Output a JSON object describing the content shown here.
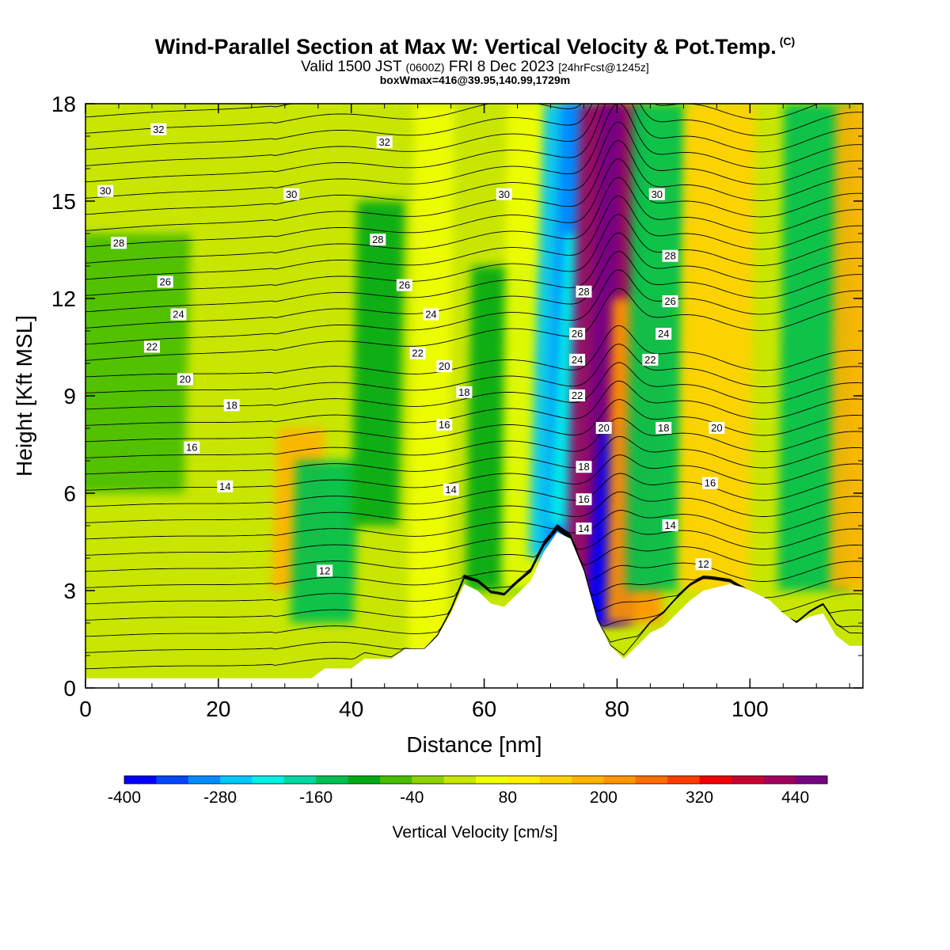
{
  "chart_data": {
    "type": "heatmap",
    "title": "Wind-Parallel Section at Max W: Vertical Velocity & Pot.Temp.",
    "title_mark": "(C)",
    "subtitle_parts": [
      "Valid 1500 JST",
      "(0600Z)",
      "FRI 8 Dec 2023",
      "[24hrFcst@1245z]"
    ],
    "subtitle2": "boxWmax=416@39.95,140.99,1729m",
    "xlabel": "Distance [nm]",
    "ylabel": "Height [Kft MSL]",
    "xlim": [
      0,
      117
    ],
    "ylim": [
      0,
      18
    ],
    "x_ticks": [
      0,
      20,
      40,
      60,
      80,
      100
    ],
    "y_ticks": [
      0,
      3,
      6,
      9,
      12,
      15,
      18
    ],
    "colorbar": {
      "label": "Vertical Velocity [cm/s]",
      "range": [
        -400,
        480
      ],
      "tick_labels": [
        "-400",
        "-280",
        "-160",
        "-40",
        "80",
        "200",
        "320",
        "440"
      ],
      "colors": [
        "#0000ff",
        "#0046ff",
        "#008cff",
        "#00c8ff",
        "#00f0e6",
        "#00d8a0",
        "#00c050",
        "#00aa14",
        "#46be00",
        "#8cd200",
        "#c8e600",
        "#f0ff00",
        "#fff000",
        "#ffd200",
        "#ffb400",
        "#ff9600",
        "#ff6e00",
        "#ff3c00",
        "#f00000",
        "#c80032",
        "#a0005a",
        "#780082"
      ]
    },
    "terrain": [
      [
        0,
        0.3
      ],
      [
        34,
        0.3
      ],
      [
        36,
        0.6
      ],
      [
        40,
        0.6
      ],
      [
        42,
        0.9
      ],
      [
        46,
        0.9
      ],
      [
        48,
        1.2
      ],
      [
        51,
        1.2
      ],
      [
        53,
        1.6
      ],
      [
        55,
        2.3
      ],
      [
        57,
        3.2
      ],
      [
        59,
        3.0
      ],
      [
        61,
        2.6
      ],
      [
        63,
        2.5
      ],
      [
        65,
        2.9
      ],
      [
        67,
        3.3
      ],
      [
        69,
        4.2
      ],
      [
        71,
        4.8
      ],
      [
        73,
        4.6
      ],
      [
        75,
        3.6
      ],
      [
        77,
        2.1
      ],
      [
        79,
        1.3
      ],
      [
        81,
        0.9
      ],
      [
        83,
        1.3
      ],
      [
        85,
        1.7
      ],
      [
        87,
        1.9
      ],
      [
        89,
        2.3
      ],
      [
        91,
        2.7
      ],
      [
        93,
        3.0
      ],
      [
        97,
        3.2
      ],
      [
        99,
        3.1
      ],
      [
        103,
        2.7
      ],
      [
        105,
        2.3
      ],
      [
        107,
        2.0
      ],
      [
        109,
        2.2
      ],
      [
        111,
        2.3
      ],
      [
        113,
        1.6
      ],
      [
        115,
        1.3
      ],
      [
        117,
        1.3
      ]
    ],
    "w_bands": [
      {
        "x": 7,
        "w": 140,
        "top": 14,
        "bot": 6,
        "v": -60
      },
      {
        "x": 24,
        "w": 60,
        "top": 16,
        "bot": 6,
        "v": 20
      },
      {
        "x": 32,
        "w": 60,
        "top": 8,
        "bot": 3,
        "v": 200
      },
      {
        "x": 36,
        "w": 80,
        "top": 7,
        "bot": 2,
        "v": -140
      },
      {
        "x": 44,
        "w": 60,
        "top": 15,
        "bot": 5,
        "v": -90
      },
      {
        "x": 52,
        "w": 50,
        "top": 18,
        "bot": 1,
        "v": 60
      },
      {
        "x": 63,
        "w": 90,
        "top": 13,
        "bot": 3,
        "v": -110
      },
      {
        "x": 66,
        "w": 50,
        "top": 18,
        "bot": 3,
        "v": 60
      },
      {
        "x": 72,
        "w": 70,
        "top": 18,
        "bot": 4,
        "v": -260
      },
      {
        "x": 75,
        "w": 70,
        "top": 14,
        "bot": 5,
        "v": -220
      },
      {
        "x": 78,
        "w": 80,
        "top": 18,
        "bot": 2,
        "v": 410
      },
      {
        "x": 80,
        "w": 60,
        "top": 8,
        "bot": 2,
        "v": -380
      },
      {
        "x": 83,
        "w": 70,
        "top": 12,
        "bot": 2,
        "v": 220
      },
      {
        "x": 86,
        "w": 70,
        "top": 18,
        "bot": 3,
        "v": -140
      },
      {
        "x": 95,
        "w": 90,
        "top": 18,
        "bot": 3,
        "v": 140
      },
      {
        "x": 110,
        "w": 90,
        "top": 18,
        "bot": 3,
        "v": -160
      },
      {
        "x": 116,
        "w": 60,
        "top": 18,
        "bot": 3,
        "v": 200
      }
    ],
    "theta_labels": [
      {
        "t": "32",
        "x": 11,
        "y": 17.2
      },
      {
        "t": "32",
        "x": 45,
        "y": 16.8
      },
      {
        "t": "30",
        "x": 3,
        "y": 15.3
      },
      {
        "t": "30",
        "x": 31,
        "y": 15.2
      },
      {
        "t": "30",
        "x": 63,
        "y": 15.2
      },
      {
        "t": "30",
        "x": 86,
        "y": 15.2
      },
      {
        "t": "28",
        "x": 5,
        "y": 13.7
      },
      {
        "t": "28",
        "x": 44,
        "y": 13.8
      },
      {
        "t": "28",
        "x": 88,
        "y": 13.3
      },
      {
        "t": "26",
        "x": 12,
        "y": 12.5
      },
      {
        "t": "26",
        "x": 48,
        "y": 12.4
      },
      {
        "t": "26",
        "x": 88,
        "y": 11.9
      },
      {
        "t": "28",
        "x": 75,
        "y": 12.2
      },
      {
        "t": "26",
        "x": 74,
        "y": 10.9
      },
      {
        "t": "24",
        "x": 14,
        "y": 11.5
      },
      {
        "t": "24",
        "x": 52,
        "y": 11.5
      },
      {
        "t": "24",
        "x": 74,
        "y": 10.1
      },
      {
        "t": "24",
        "x": 87,
        "y": 10.9
      },
      {
        "t": "22",
        "x": 10,
        "y": 10.5
      },
      {
        "t": "22",
        "x": 50,
        "y": 10.3
      },
      {
        "t": "22",
        "x": 74,
        "y": 9.0
      },
      {
        "t": "22",
        "x": 85,
        "y": 10.1
      },
      {
        "t": "20",
        "x": 15,
        "y": 9.5
      },
      {
        "t": "20",
        "x": 54,
        "y": 9.9
      },
      {
        "t": "20",
        "x": 78,
        "y": 8.0
      },
      {
        "t": "20",
        "x": 95,
        "y": 8.0
      },
      {
        "t": "18",
        "x": 22,
        "y": 8.7
      },
      {
        "t": "18",
        "x": 57,
        "y": 9.1
      },
      {
        "t": "18",
        "x": 75,
        "y": 6.8
      },
      {
        "t": "18",
        "x": 87,
        "y": 8.0
      },
      {
        "t": "16",
        "x": 16,
        "y": 7.4
      },
      {
        "t": "16",
        "x": 54,
        "y": 8.1
      },
      {
        "t": "16",
        "x": 75,
        "y": 5.8
      },
      {
        "t": "16",
        "x": 94,
        "y": 6.3
      },
      {
        "t": "14",
        "x": 21,
        "y": 6.2
      },
      {
        "t": "14",
        "x": 55,
        "y": 6.1
      },
      {
        "t": "14",
        "x": 75,
        "y": 4.9
      },
      {
        "t": "14",
        "x": 88,
        "y": 5.0
      },
      {
        "t": "12",
        "x": 36,
        "y": 3.6
      },
      {
        "t": "12",
        "x": 93,
        "y": 3.8
      }
    ]
  }
}
